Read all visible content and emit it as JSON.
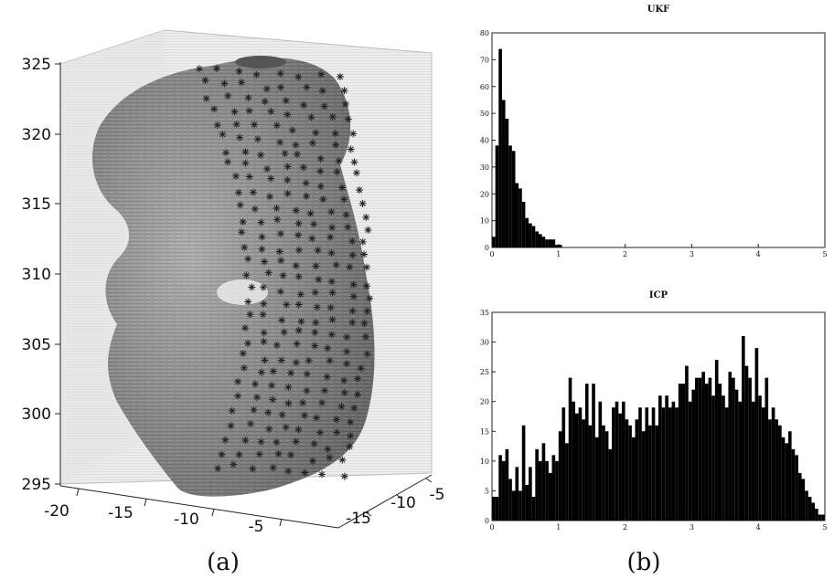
{
  "panels": {
    "a": {
      "caption": "(a)",
      "z_ticks": [
        "325",
        "320",
        "315",
        "310",
        "305",
        "300",
        "295"
      ],
      "x_ticks": [
        "-20",
        "-15",
        "-10",
        "-5"
      ],
      "y_ticks": [
        "-15",
        "-10",
        "-5"
      ]
    },
    "b": {
      "caption": "(b)"
    }
  },
  "chart_data": [
    {
      "type": "scatter",
      "title": "",
      "xlabel": "",
      "ylabel": "",
      "zlabel": "",
      "xlim": [
        -20,
        -5
      ],
      "ylim": [
        -15,
        -5
      ],
      "zlim": [
        295,
        325
      ],
      "description_of_marks": "3D surface with overlaid asterisk markers",
      "colors": {
        "surface": "#8a8a8a",
        "markers": "#222222"
      }
    },
    {
      "type": "bar",
      "title": "UKF",
      "xlabel": "",
      "ylabel": "",
      "xlim": [
        0,
        5
      ],
      "ylim": [
        0,
        80
      ],
      "x_ticks": [
        "0",
        "1",
        "2",
        "3",
        "4",
        "5"
      ],
      "y_ticks": [
        "0",
        "10",
        "20",
        "30",
        "40",
        "50",
        "60",
        "70",
        "80"
      ],
      "bin_width": 0.05,
      "values": [
        4,
        38,
        74,
        55,
        48,
        38,
        36,
        24,
        22,
        17,
        11,
        9,
        8,
        6,
        5,
        4,
        3,
        3,
        3,
        1,
        1
      ],
      "color": "#000000"
    },
    {
      "type": "bar",
      "title": "ICP",
      "xlabel": "",
      "ylabel": "",
      "xlim": [
        0,
        5
      ],
      "ylim": [
        0,
        35
      ],
      "x_ticks": [
        "0",
        "1",
        "2",
        "3",
        "4",
        "5"
      ],
      "y_ticks": [
        "0",
        "5",
        "10",
        "15",
        "20",
        "25",
        "30",
        "35"
      ],
      "bin_width": 0.05,
      "values": [
        4,
        4,
        11,
        10,
        12,
        7,
        5,
        9,
        5,
        16,
        6,
        9,
        4,
        12,
        10,
        13,
        10,
        8,
        11,
        10,
        15,
        19,
        13,
        24,
        20,
        18,
        19,
        17,
        23,
        16,
        23,
        14,
        20,
        16,
        15,
        12,
        19,
        20,
        18,
        20,
        17,
        16,
        14,
        17,
        19,
        15,
        19,
        16,
        19,
        16,
        21,
        19,
        21,
        19,
        20,
        19,
        23,
        23,
        26,
        20,
        22,
        24,
        24,
        25,
        23,
        24,
        21,
        27,
        23,
        21,
        19,
        25,
        24,
        22,
        20,
        31,
        26,
        24,
        20,
        29,
        21,
        19,
        24,
        17,
        19,
        17,
        16,
        14,
        13,
        15,
        12,
        11,
        8,
        7,
        5,
        4,
        3,
        2,
        1,
        1
      ],
      "color": "#000000"
    }
  ]
}
